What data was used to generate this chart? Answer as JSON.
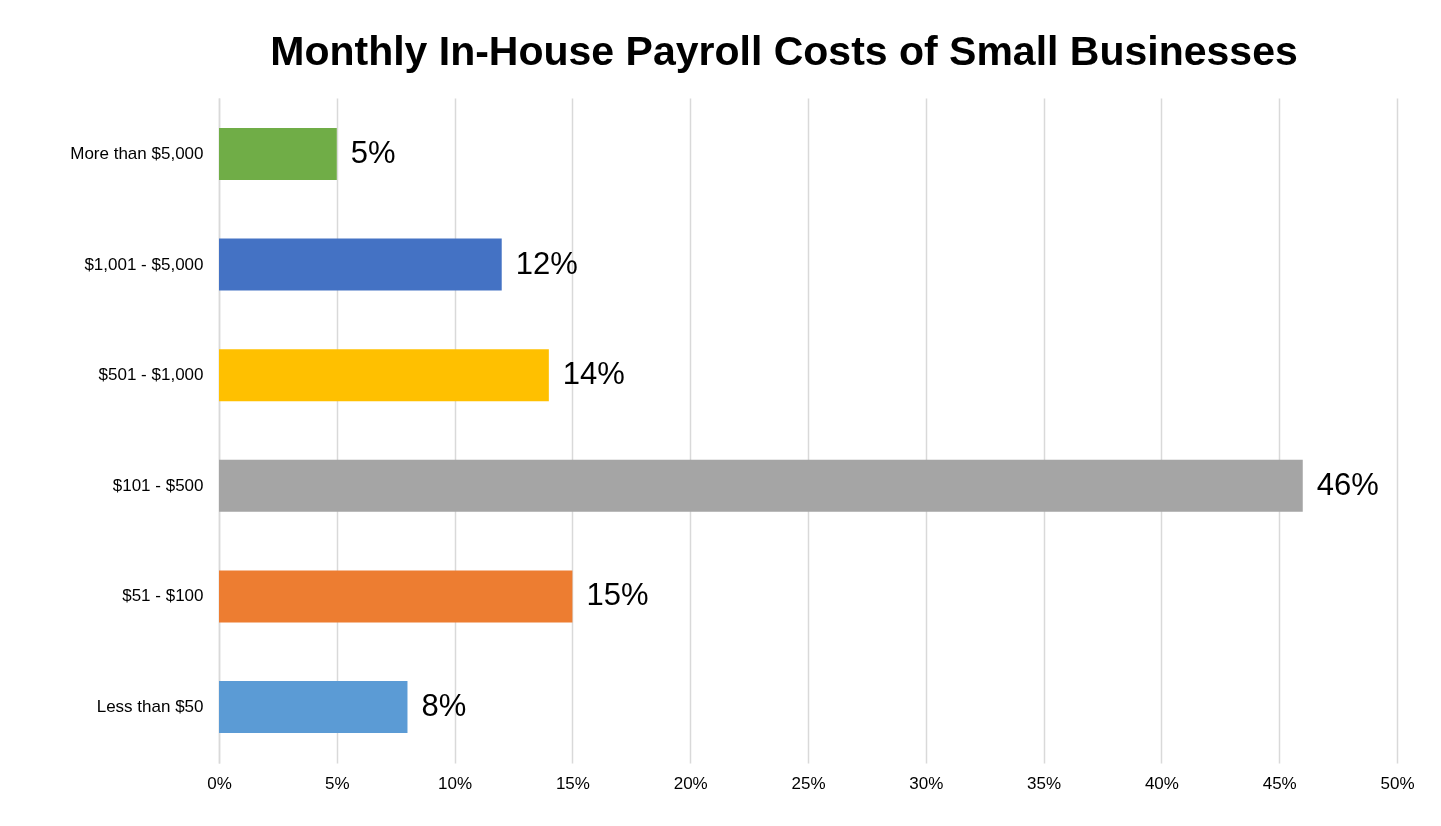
{
  "chart_data": {
    "type": "bar",
    "orientation": "horizontal",
    "title": "Monthly In-House Payroll Costs of Small Businesses",
    "categories": [
      "More than $5,000",
      "$1,001 - $5,000",
      "$501 - $1,000",
      "$101 - $500",
      "$51 - $100",
      "Less than $50"
    ],
    "values": [
      5,
      12,
      14,
      46,
      15,
      8
    ],
    "value_labels": [
      "5%",
      "12%",
      "14%",
      "46%",
      "15%",
      "8%"
    ],
    "colors": [
      "#70ad47",
      "#4472c4",
      "#ffc000",
      "#a5a5a5",
      "#ed7d31",
      "#5b9bd5"
    ],
    "xlim": [
      0,
      50
    ],
    "xticks": [
      {
        "value": 0,
        "label": "0%"
      },
      {
        "value": 5,
        "label": "5%"
      },
      {
        "value": 10,
        "label": "10%"
      },
      {
        "value": 15,
        "label": "15%"
      },
      {
        "value": 20,
        "label": "20%"
      },
      {
        "value": 25,
        "label": "25%"
      },
      {
        "value": 30,
        "label": "30%"
      },
      {
        "value": 35,
        "label": "35%"
      },
      {
        "value": 40,
        "label": "40%"
      },
      {
        "value": 45,
        "label": "45%"
      },
      {
        "value": 50,
        "label": "50%"
      }
    ],
    "grid": "x"
  }
}
